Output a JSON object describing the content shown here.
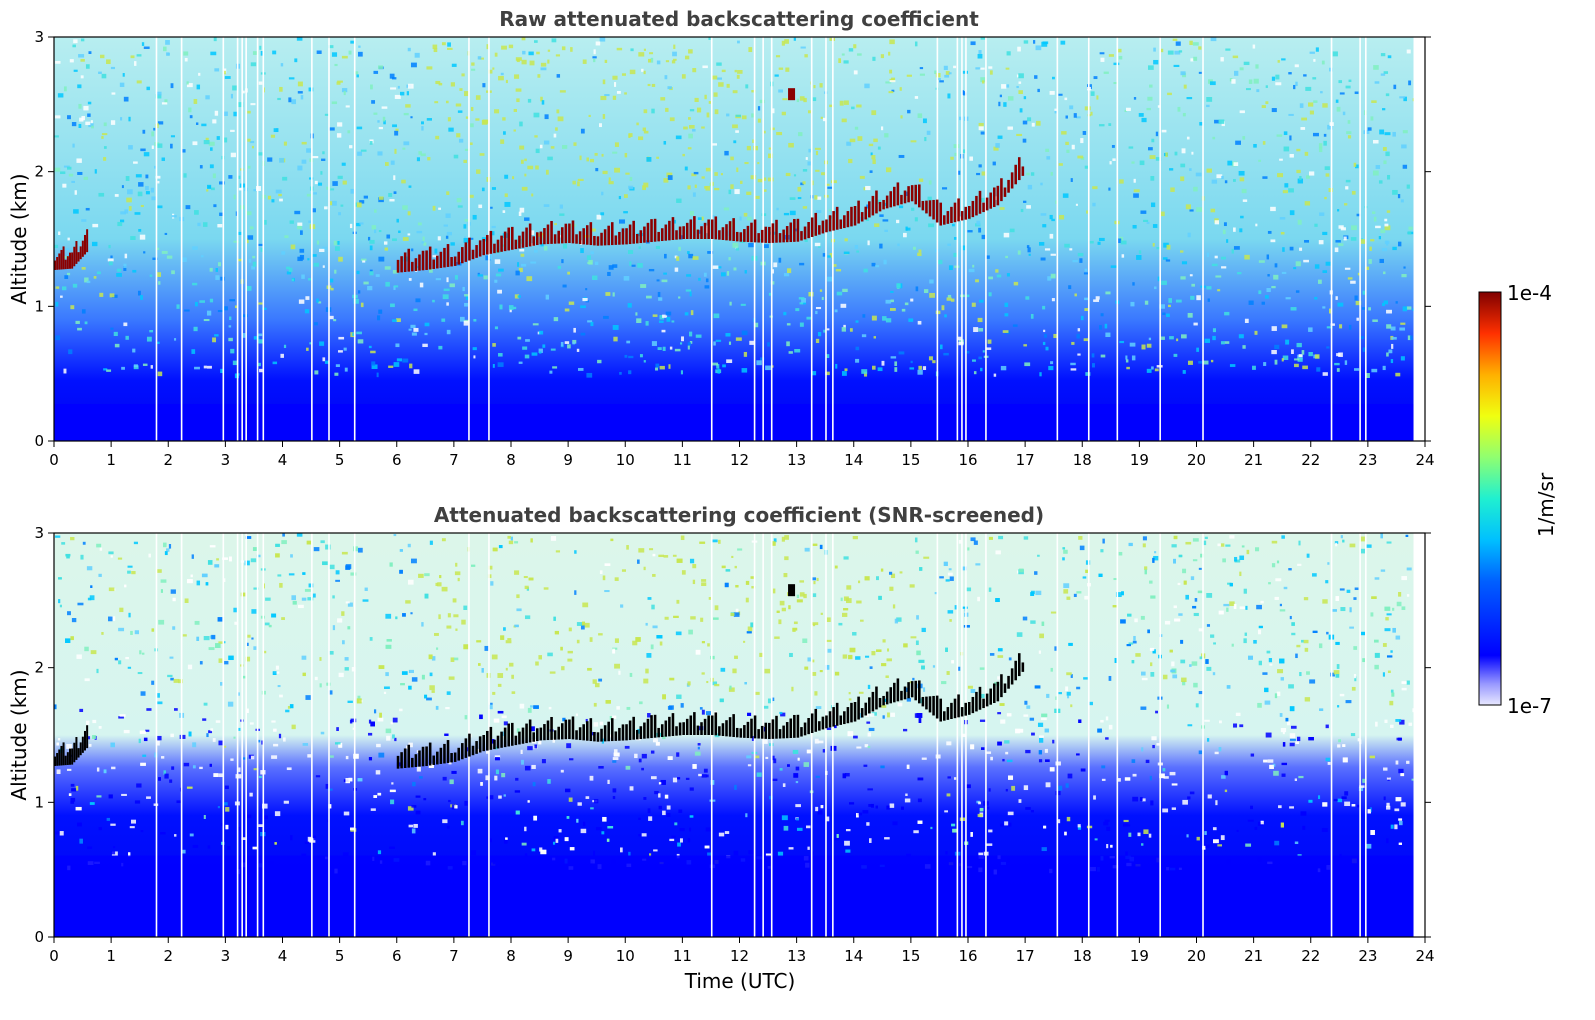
{
  "chart_data": [
    {
      "type": "heatmap",
      "title": "Raw attenuated backscattering coefficient",
      "xlabel": "",
      "ylabel": "Altitude (km)",
      "xlim": [
        0,
        24
      ],
      "ylim": [
        0,
        3
      ],
      "x_ticks": [
        "0",
        "1",
        "2",
        "3",
        "4",
        "5",
        "6",
        "7",
        "8",
        "9",
        "10",
        "11",
        "12",
        "13",
        "14",
        "15",
        "16",
        "17",
        "18",
        "19",
        "20",
        "21",
        "22",
        "23",
        "24"
      ],
      "y_ticks": [
        "0",
        "1",
        "2",
        "3"
      ],
      "cloud_layer": {
        "description_values": "cloud base height (km) vs time (UTC)",
        "x": [
          0.0,
          0.3,
          0.6,
          6.0,
          6.5,
          7.0,
          7.5,
          8.0,
          8.5,
          9.0,
          9.5,
          10.0,
          10.5,
          11.0,
          11.5,
          12.0,
          12.5,
          13.0,
          13.5,
          14.0,
          14.5,
          15.0,
          15.5,
          16.0,
          16.5,
          17.0
        ],
        "y": [
          1.27,
          1.28,
          1.42,
          1.25,
          1.27,
          1.3,
          1.38,
          1.42,
          1.46,
          1.47,
          1.45,
          1.46,
          1.48,
          1.5,
          1.5,
          1.48,
          1.47,
          1.48,
          1.55,
          1.6,
          1.72,
          1.78,
          1.6,
          1.65,
          1.75,
          2.0
        ]
      },
      "noise_floor_top_km": 0.5
    },
    {
      "type": "heatmap",
      "title": "Attenuated backscattering coefficient (SNR-screened)",
      "xlabel": "Time (UTC)",
      "ylabel": "Altitude (km)",
      "xlim": [
        0,
        24
      ],
      "ylim": [
        0,
        3
      ],
      "x_ticks": [
        "0",
        "1",
        "2",
        "3",
        "4",
        "5",
        "6",
        "7",
        "8",
        "9",
        "10",
        "11",
        "12",
        "13",
        "14",
        "15",
        "16",
        "17",
        "18",
        "19",
        "20",
        "21",
        "22",
        "23",
        "24"
      ],
      "y_ticks": [
        "0",
        "1",
        "2",
        "3"
      ],
      "cloud_layer": {
        "description_values": "cloud base height (km) vs time (UTC)",
        "x": [
          0.0,
          0.3,
          0.6,
          6.0,
          6.5,
          7.0,
          7.5,
          8.0,
          8.5,
          9.0,
          9.5,
          10.0,
          10.5,
          11.0,
          11.5,
          12.0,
          12.5,
          13.0,
          13.5,
          14.0,
          14.5,
          15.0,
          15.5,
          16.0,
          16.5,
          17.0
        ],
        "y": [
          1.27,
          1.28,
          1.42,
          1.25,
          1.27,
          1.3,
          1.38,
          1.42,
          1.46,
          1.47,
          1.45,
          1.46,
          1.48,
          1.5,
          1.5,
          1.48,
          1.47,
          1.48,
          1.55,
          1.6,
          1.72,
          1.78,
          1.6,
          1.65,
          1.75,
          2.0
        ]
      },
      "noise_floor_top_km": 1.1
    }
  ],
  "colorbar": {
    "label": "1/m/sr",
    "max_label": "1e-4",
    "min_label": "1e-7",
    "scale": "log",
    "colormap": "jet"
  },
  "colors": {
    "cloud_raw": "#8b0000",
    "cloud_screened": "#000000",
    "low_signal": "#0000ff",
    "noise_mid": "#00c8ff",
    "noise_high": "#c8e650"
  }
}
